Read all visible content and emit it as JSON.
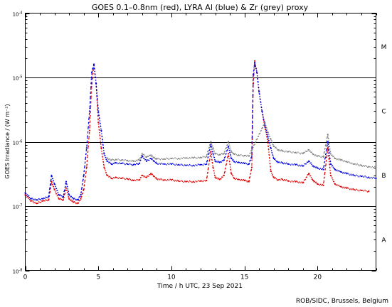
{
  "chart_data": {
    "type": "scatter",
    "title": "GOES 0.1–0.8nm (red), LYRA Al (blue) & Zr (grey) proxy",
    "xlabel": "Time / h UTC, 23 Sep 2021",
    "ylabel": "GOES Irradiance / (W m⁻²)",
    "xlim": [
      0,
      24
    ],
    "ylim": [
      1e-08,
      0.0001
    ],
    "y_scale": "log",
    "x_ticks": [
      0,
      5,
      10,
      15,
      20
    ],
    "x_tick_labels": [
      "0",
      "5",
      "10",
      "15",
      "20"
    ],
    "y_ticks": [
      1e-08,
      1e-07,
      1e-06,
      1e-05,
      0.0001
    ],
    "y_tick_labels": [
      {
        "base": "10",
        "exp": "-8"
      },
      {
        "base": "10",
        "exp": "-7"
      },
      {
        "base": "10",
        "exp": "-6"
      },
      {
        "base": "10",
        "exp": "-5"
      },
      {
        "base": "10",
        "exp": "-4"
      }
    ],
    "flare_class_lines": [
      1e-07,
      1e-06,
      1e-05
    ],
    "flare_classes": [
      {
        "label": "A",
        "y": 3e-08
      },
      {
        "label": "B",
        "y": 3e-07
      },
      {
        "label": "C",
        "y": 3e-06
      },
      {
        "label": "M",
        "y": 3e-05
      }
    ],
    "grid": false,
    "series": [
      {
        "color": "#e00000",
        "x": [
          0,
          0.4,
          0.8,
          1.2,
          1.6,
          1.8,
          2.0,
          2.3,
          2.6,
          2.8,
          3.0,
          3.3,
          3.6,
          3.8,
          4.0,
          4.2,
          4.4,
          4.55,
          4.7,
          4.85,
          5.0,
          5.2,
          5.4,
          5.6,
          5.9,
          6.2,
          6.6,
          7.0,
          7.4,
          7.8,
          8.0,
          8.3,
          8.6,
          8.8,
          9.0,
          9.5,
          10.0,
          10.5,
          11.0,
          11.5,
          12.0,
          12.4,
          12.7,
          12.85,
          13.0,
          13.3,
          13.6,
          13.9,
          14.1,
          14.3,
          14.6,
          15.0,
          15.3,
          15.5,
          15.6,
          15.7,
          15.85,
          16.0,
          16.2,
          16.4,
          16.6,
          16.8,
          17.0,
          17.3,
          17.6,
          18.0,
          18.5,
          19.0,
          19.4,
          19.7,
          20.0,
          20.4,
          20.7,
          20.9,
          21.2,
          21.6,
          22.0,
          22.5,
          23.0,
          23.5
        ],
        "y": [
          1.5e-07,
          1.2e-07,
          1.1e-07,
          1.2e-07,
          1.25e-07,
          2.4e-07,
          1.8e-07,
          1.3e-07,
          1.25e-07,
          1.9e-07,
          1.3e-07,
          1.15e-07,
          1.1e-07,
          1.3e-07,
          1.8e-07,
          4e-07,
          1.5e-06,
          8e-06,
          1.6e-05,
          8e-06,
          2e-06,
          8e-07,
          4e-07,
          3e-07,
          2.7e-07,
          2.8e-07,
          2.7e-07,
          2.65e-07,
          2.5e-07,
          2.55e-07,
          3e-07,
          2.8e-07,
          3.2e-07,
          2.9e-07,
          2.65e-07,
          2.55e-07,
          2.55e-07,
          2.45e-07,
          2.4e-07,
          2.4e-07,
          2.45e-07,
          2.5e-07,
          7e-07,
          4e-07,
          2.8e-07,
          2.6e-07,
          3e-07,
          6.5e-07,
          3.2e-07,
          2.7e-07,
          2.6e-07,
          2.5e-07,
          2.4e-07,
          4e-07,
          8e-06,
          1.8e-05,
          1.2e-05,
          6e-06,
          3e-06,
          1.7e-06,
          1e-06,
          3.5e-07,
          2.8e-07,
          2.55e-07,
          2.6e-07,
          2.45e-07,
          2.4e-07,
          2.3e-07,
          3.2e-07,
          2.5e-07,
          2.2e-07,
          2.1e-07,
          8e-07,
          3e-07,
          2.2e-07,
          2e-07,
          1.9e-07,
          1.8e-07,
          1.75e-07,
          1.7e-07
        ]
      },
      {
        "color": "#0000e0",
        "x": [
          0,
          0.4,
          0.8,
          1.2,
          1.6,
          1.8,
          2.0,
          2.3,
          2.6,
          2.8,
          3.0,
          3.3,
          3.6,
          3.8,
          4.0,
          4.2,
          4.4,
          4.55,
          4.7,
          4.85,
          5.0,
          5.2,
          5.4,
          5.6,
          5.9,
          6.2,
          6.6,
          7.0,
          7.4,
          7.8,
          8.0,
          8.3,
          8.6,
          8.8,
          9.0,
          9.5,
          10.0,
          10.5,
          11.0,
          11.5,
          12.0,
          12.4,
          12.7,
          12.85,
          13.0,
          13.3,
          13.6,
          13.9,
          14.1,
          14.3,
          14.6,
          15.0,
          15.3,
          15.5,
          15.6,
          15.7,
          15.85,
          16.0,
          16.2,
          16.4,
          16.6,
          16.8,
          17.0,
          17.3,
          17.6,
          18.0,
          18.5,
          19.0,
          19.4,
          19.7,
          20.0,
          20.4,
          20.7,
          20.9,
          21.2,
          21.6,
          22.0,
          22.5,
          23.0,
          23.5,
          24.0
        ],
        "y": [
          1.6e-07,
          1.3e-07,
          1.25e-07,
          1.3e-07,
          1.4e-07,
          3e-07,
          2.2e-07,
          1.5e-07,
          1.4e-07,
          2.4e-07,
          1.5e-07,
          1.3e-07,
          1.25e-07,
          1.5e-07,
          3e-07,
          8e-07,
          3e-06,
          1.2e-05,
          1.6e-05,
          8e-06,
          3e-06,
          1.5e-06,
          6.5e-07,
          5e-07,
          4.5e-07,
          4.7e-07,
          4.6e-07,
          4.5e-07,
          4.4e-07,
          4.6e-07,
          6e-07,
          5e-07,
          5.5e-07,
          5e-07,
          4.6e-07,
          4.5e-07,
          4.5e-07,
          4.4e-07,
          4.3e-07,
          4.3e-07,
          4.4e-07,
          4.5e-07,
          9e-07,
          6.5e-07,
          5e-07,
          4.8e-07,
          5.2e-07,
          8.5e-07,
          5.5e-07,
          4.9e-07,
          4.8e-07,
          4.6e-07,
          4.5e-07,
          6e-07,
          1.1e-05,
          1.7e-05,
          1.2e-05,
          6e-06,
          3e-06,
          1.8e-06,
          1.2e-06,
          8e-07,
          5.5e-07,
          4.8e-07,
          4.7e-07,
          4.5e-07,
          4.4e-07,
          4.2e-07,
          5e-07,
          4.2e-07,
          3.9e-07,
          3.7e-07,
          1e-06,
          4.5e-07,
          3.7e-07,
          3.4e-07,
          3.2e-07,
          3e-07,
          2.9e-07,
          2.8e-07,
          2.7e-07
        ]
      },
      {
        "color": "#808080",
        "x": [
          5.6,
          5.9,
          6.2,
          6.6,
          7.0,
          7.4,
          7.8,
          8.0,
          8.3,
          8.6,
          8.8,
          9.0,
          9.5,
          10.0,
          10.5,
          11.0,
          11.5,
          12.0,
          12.4,
          12.7,
          12.85,
          13.0,
          13.3,
          13.6,
          13.9,
          14.1,
          14.3,
          14.6,
          15.0,
          15.3,
          16.4,
          16.6,
          16.8,
          17.0,
          17.3,
          17.6,
          18.0,
          18.5,
          19.0,
          19.4,
          19.7,
          20.0,
          20.4,
          20.7,
          20.9,
          21.2,
          21.6,
          22.0,
          22.5,
          23.0,
          23.5,
          24.0
        ],
        "y": [
          5.6e-07,
          5.2e-07,
          5.3e-07,
          5.2e-07,
          5.1e-07,
          5e-07,
          5.2e-07,
          6.5e-07,
          5.8e-07,
          6.2e-07,
          5.7e-07,
          5.4e-07,
          5.4e-07,
          5.5e-07,
          5.5e-07,
          5.6e-07,
          5.6e-07,
          5.7e-07,
          5.9e-07,
          1e-06,
          8e-07,
          6.5e-07,
          6.3e-07,
          6.6e-07,
          1e-06,
          7e-07,
          6.4e-07,
          6.2e-07,
          6.1e-07,
          6e-07,
          2e-06,
          1.4e-06,
          1.1e-06,
          8.5e-07,
          7.5e-07,
          7.2e-07,
          7e-07,
          6.8e-07,
          6.6e-07,
          7.5e-07,
          6.4e-07,
          6e-07,
          5.8e-07,
          1.3e-06,
          6.5e-07,
          5.5e-07,
          5.2e-07,
          4.9e-07,
          4.5e-07,
          4.3e-07,
          4.1e-07,
          4e-07
        ]
      }
    ]
  },
  "footer": {
    "credit": "ROB/SIDC, Brussels, Belgium"
  }
}
